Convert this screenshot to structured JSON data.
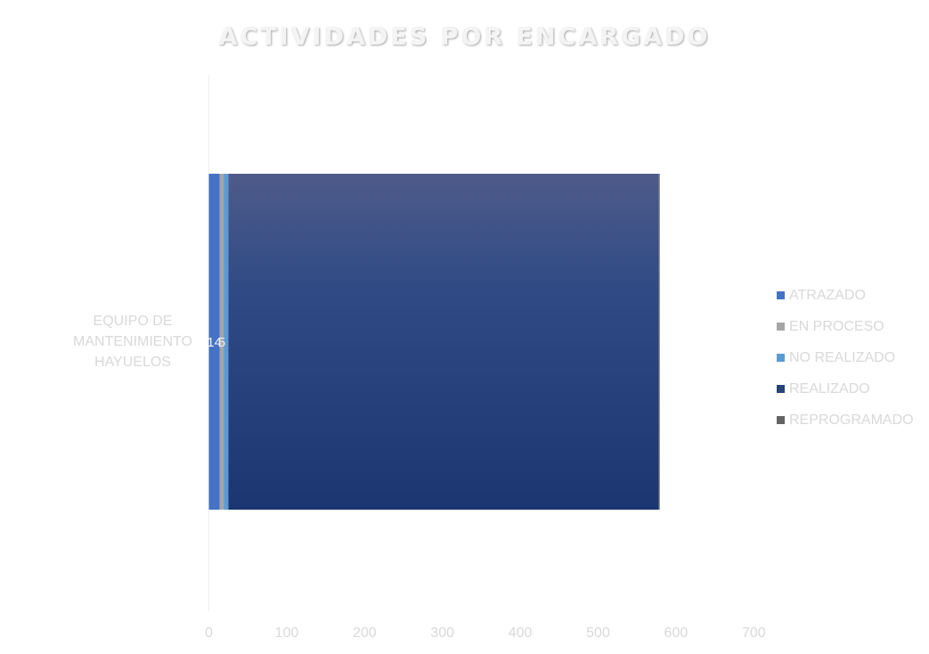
{
  "chart_data": {
    "type": "bar",
    "orientation": "horizontal",
    "stacked": true,
    "title": "ACTIVIDADES POR ENCARGADO",
    "categories": [
      "EQUIPO DE MANTENIMIENTO HAYUELOS"
    ],
    "category_label_lines": [
      "EQUIPO DE",
      "MANTENIMIENTO",
      "HAYUELOS"
    ],
    "series": [
      {
        "name": "ATRAZADO",
        "values": [
          14
        ],
        "color": "#4472c4"
      },
      {
        "name": "EN PROCESO",
        "values": [
          5
        ],
        "color": "#a5a5a5"
      },
      {
        "name": "NO REALIZADO",
        "values": [
          6
        ],
        "color": "#5b9bd5"
      },
      {
        "name": "REALIZADO",
        "values": [
          553
        ],
        "color": "#264478"
      },
      {
        "name": "REPROGRAMADO",
        "values": [
          1
        ],
        "color": "#636363"
      }
    ],
    "data_labels": [
      {
        "series": "ATRAZADO",
        "text": "14"
      },
      {
        "series": "EN PROCESO",
        "text": "5"
      }
    ],
    "xticks": [
      "0",
      "100",
      "200",
      "300",
      "400",
      "500",
      "600",
      "700"
    ],
    "xlim": [
      0,
      700
    ],
    "grid": false,
    "legend_position": "right"
  }
}
